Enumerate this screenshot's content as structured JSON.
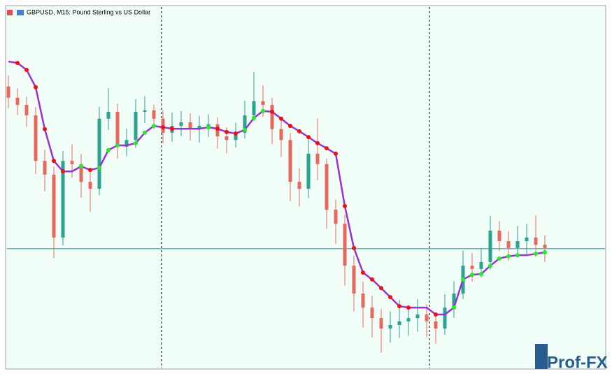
{
  "chart_data": {
    "type": "candlestick",
    "title": "GBPUSD, M15:  Pound Sterling vs US Dollar",
    "watermark": "Prof-FX",
    "ylim": [
      0,
      100
    ],
    "up_color": "#2aa38f",
    "down_color": "#e8675f",
    "open": [
      78.0,
      74.9,
      72.9,
      70.0,
      57.4,
      53.6,
      36.2,
      57.4,
      56.5,
      51.6,
      49.7,
      69.1,
      71.0,
      61.3,
      63.2,
      71.0,
      71.4,
      69.1,
      65.2,
      67.1,
      68.1,
      66.2,
      67.1,
      67.5,
      64.2,
      63.2,
      65.2,
      70.0,
      73.9,
      72.9,
      66.2,
      63.2,
      51.6,
      49.7,
      59.4,
      56.5,
      43.9,
      40.0,
      28.4,
      20.7,
      16.8,
      13.9,
      11.0,
      12.0,
      13.0,
      13.9,
      14.9,
      13.0,
      11.0,
      16.8,
      20.7,
      28.4,
      27.5,
      29.4,
      38.1,
      35.2,
      33.3,
      35.2,
      36.2,
      34.2
    ],
    "high": [
      81.0,
      77.5,
      75.2,
      72.3,
      60.5,
      55.8,
      60.1,
      62.0,
      59.3,
      55.0,
      72.4,
      77.5,
      73.2,
      66.4,
      74.5,
      75.3,
      73.0,
      71.5,
      70.8,
      71.2,
      70.6,
      69.9,
      70.3,
      69.4,
      66.7,
      68.0,
      74.1,
      82.0,
      78.3,
      74.8,
      69.0,
      65.1,
      55.4,
      63.8,
      69.2,
      58.0,
      46.7,
      42.5,
      31.2,
      24.0,
      20.1,
      16.4,
      15.8,
      18.9,
      17.5,
      19.2,
      17.7,
      15.2,
      20.5,
      24.1,
      32.6,
      31.9,
      33.0,
      42.2,
      40.7,
      37.9,
      39.4,
      40.0,
      42.3,
      36.8
    ],
    "low": [
      72.0,
      70.1,
      66.8,
      53.8,
      49.0,
      30.5,
      34.0,
      52.8,
      47.2,
      43.4,
      47.9,
      66.0,
      58.0,
      58.7,
      61.0,
      67.9,
      66.2,
      62.3,
      62.7,
      64.3,
      63.1,
      62.5,
      64.0,
      60.8,
      59.5,
      61.1,
      63.6,
      68.4,
      69.6,
      62.1,
      58.5,
      46.2,
      44.8,
      47.1,
      52.0,
      38.6,
      34.4,
      22.9,
      15.8,
      11.3,
      8.5,
      4.3,
      7.1,
      8.4,
      9.0,
      10.1,
      8.6,
      6.8,
      9.3,
      14.0,
      19.2,
      24.0,
      25.1,
      27.3,
      32.4,
      29.8,
      30.6,
      31.7,
      30.9,
      29.5
    ],
    "close": [
      74.9,
      72.9,
      70.0,
      57.4,
      53.6,
      36.2,
      57.4,
      56.5,
      51.6,
      49.7,
      69.1,
      71.0,
      61.3,
      63.2,
      71.0,
      71.4,
      69.1,
      65.2,
      67.1,
      68.1,
      66.2,
      67.1,
      67.5,
      64.2,
      63.2,
      65.2,
      70.0,
      73.9,
      72.9,
      66.2,
      63.2,
      51.6,
      49.7,
      59.4,
      56.5,
      43.9,
      40.0,
      28.4,
      20.7,
      16.8,
      13.9,
      11.0,
      12.0,
      13.0,
      13.9,
      14.9,
      13.0,
      11.0,
      16.8,
      20.7,
      28.4,
      27.5,
      29.4,
      38.1,
      35.2,
      33.3,
      35.2,
      36.2,
      34.2,
      33.3
    ],
    "indicator": {
      "color": "#9b30d9",
      "rise_color": "#22ee22",
      "fall_color": "#ee1111",
      "values": [
        84.9,
        84.5,
        82.6,
        77.8,
        66.2,
        57.4,
        54.5,
        54.5,
        55.9,
        54.9,
        55.5,
        60.4,
        61.7,
        61.7,
        62.3,
        65.2,
        67.1,
        66.7,
        66.3,
        66.3,
        66.3,
        66.3,
        66.7,
        66.3,
        65.4,
        65.0,
        66.0,
        69.3,
        71.2,
        71.0,
        69.1,
        67.1,
        65.6,
        64.0,
        62.3,
        60.9,
        59.4,
        44.9,
        33.3,
        26.5,
        24.6,
        22.2,
        19.7,
        17.2,
        16.8,
        16.8,
        16.8,
        14.9,
        14.9,
        16.8,
        24.6,
        25.9,
        26.1,
        28.4,
        30.4,
        31.0,
        31.3,
        31.3,
        31.7,
        32.1
      ]
    },
    "hline": {
      "value": 33.1,
      "color": "#2e8b8b"
    }
  }
}
